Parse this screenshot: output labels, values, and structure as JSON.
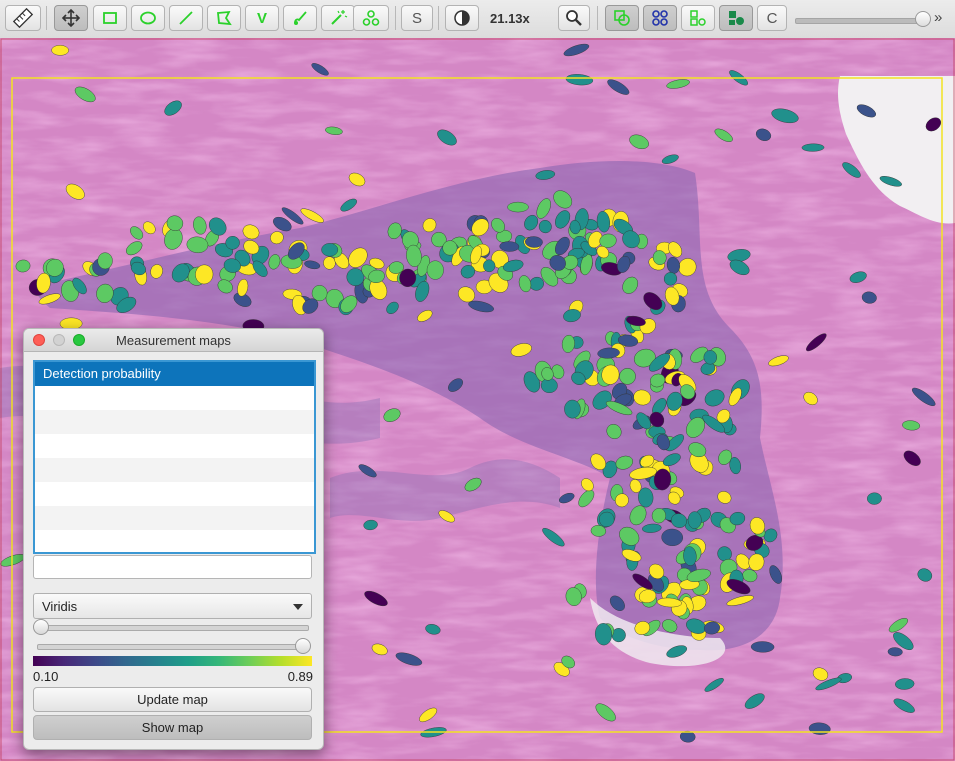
{
  "toolbar": {
    "zoom": "21.13x",
    "slider_level": 0.95,
    "tools": [
      {
        "name": "measure-tool-icon"
      },
      {
        "name": "move-tool-icon"
      },
      {
        "name": "rectangle-tool-icon"
      },
      {
        "name": "ellipse-tool-icon"
      },
      {
        "name": "line-tool-icon"
      },
      {
        "name": "polygon-tool-icon"
      },
      {
        "name": "polyline-tool-icon",
        "label": "V"
      },
      {
        "name": "brush-tool-icon"
      },
      {
        "name": "wand-tool-icon"
      },
      {
        "name": "points-tool-icon"
      },
      {
        "name": "selection-mode-button",
        "label": "S"
      },
      {
        "name": "brightness-contrast-icon"
      },
      {
        "name": "zoom-to-fit-icon"
      },
      {
        "name": "show-annotations-icon"
      },
      {
        "name": "show-detections-icon"
      },
      {
        "name": "show-tma-grid-icon"
      },
      {
        "name": "pixel-classification-icon"
      },
      {
        "name": "cell-boundaries-button",
        "label": "C"
      }
    ],
    "more_label": "»"
  },
  "dialog": {
    "title": "Measurement maps",
    "measurements": [
      "Detection probability"
    ],
    "selected_index": 0,
    "filter_value": "",
    "colormap": "Viridis",
    "min_slider": 0.0,
    "max_slider": 1.0,
    "min_value": "0.10",
    "max_value": "0.89",
    "update_button": "Update map",
    "show_button": "Show map"
  },
  "colors": {
    "selection_blue": "#0d74bb",
    "annotation_yellow": "#f2e322",
    "tissue_pink": "#d98ac8",
    "viridis": [
      "#440154",
      "#3b528b",
      "#21908c",
      "#5dc963",
      "#fde725"
    ]
  }
}
